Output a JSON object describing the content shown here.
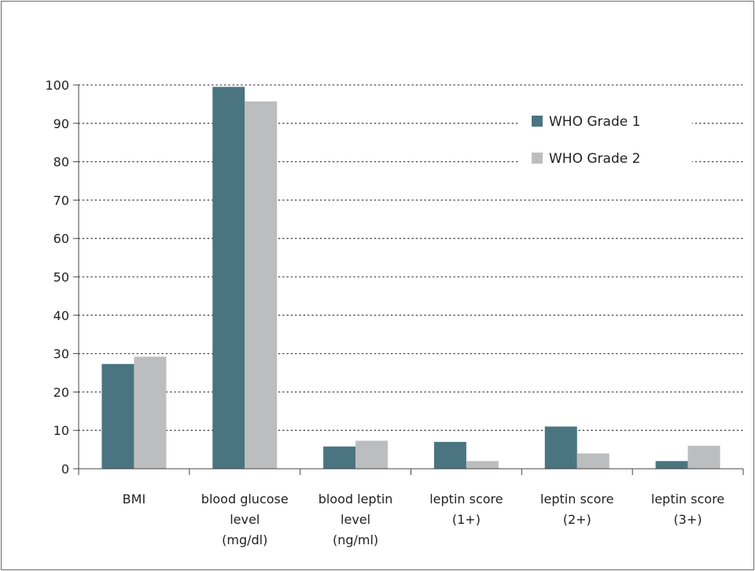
{
  "chart_data": {
    "type": "bar",
    "categories": [
      [
        "BMI"
      ],
      [
        "blood glucose",
        "level",
        "(mg/dl)"
      ],
      [
        "blood leptin",
        "level",
        "(ng/ml)"
      ],
      [
        "leptin score",
        "(1+)"
      ],
      [
        "leptin score",
        "(2+)"
      ],
      [
        "leptin score",
        "(3+)"
      ]
    ],
    "series": [
      {
        "name": "WHO Grade 1",
        "color": "#4a7580",
        "values": [
          27.3,
          99.5,
          5.8,
          7,
          11,
          2
        ]
      },
      {
        "name": "WHO Grade 2",
        "color": "#bcbdbf",
        "values": [
          29.2,
          95.7,
          7.3,
          2,
          4,
          6
        ]
      }
    ],
    "ylim": [
      0,
      100
    ],
    "yticks": [
      0,
      10,
      20,
      30,
      40,
      50,
      60,
      70,
      80,
      90,
      100
    ],
    "grid": "dotted-horizontal",
    "legend": "top-right",
    "title": "",
    "xlabel": "",
    "ylabel": ""
  }
}
